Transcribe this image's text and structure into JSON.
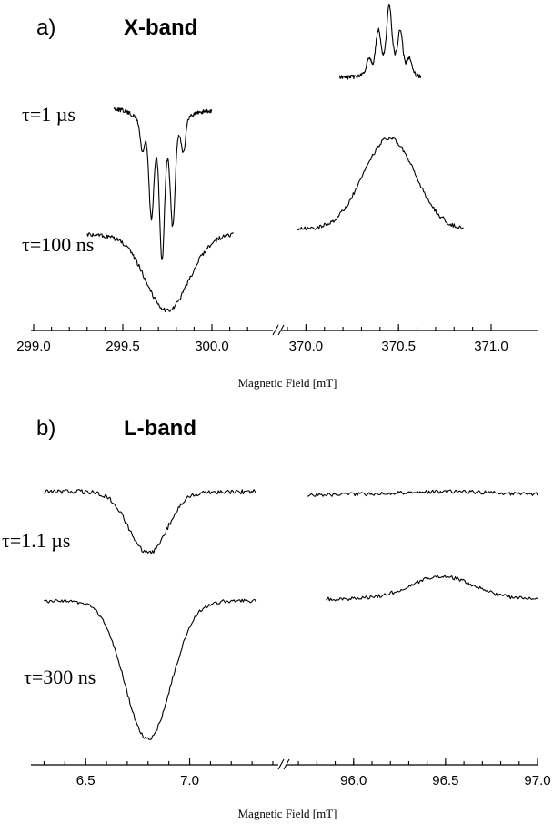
{
  "chart_data": [
    {
      "panel": "a)",
      "title": "X-band",
      "type": "line",
      "xlabel": "Magnetic Field [mT]",
      "ylabel": "",
      "axis_break": true,
      "segments": [
        {
          "xlim": [
            299.0,
            300.25
          ],
          "ticks": [
            "299.0",
            "299.5",
            "300.0"
          ]
        },
        {
          "xlim": [
            369.9,
            371.0
          ],
          "ticks": [
            "370.0",
            "370.5",
            "371.0"
          ]
        }
      ],
      "series": [
        {
          "label": "τ=1 µs",
          "parts": [
            {
              "segment": 0,
              "x_range": [
                299.45,
                300.0
              ],
              "shape": "triplet absorption",
              "center": 299.72,
              "lines": [
                299.66,
                299.72,
                299.78
              ],
              "depth": 1.0
            },
            {
              "segment": 1,
              "x_range": [
                370.18,
                370.62
              ],
              "shape": "triplet emission",
              "center": 370.45,
              "lines": [
                370.39,
                370.45,
                370.51
              ],
              "height": 0.75
            }
          ]
        },
        {
          "label": "τ=100 ns",
          "parts": [
            {
              "segment": 0,
              "x_range": [
                299.3,
                300.12
              ],
              "shape": "broad absorption",
              "center": 299.75,
              "depth": 0.7
            },
            {
              "segment": 1,
              "x_range": [
                369.95,
                370.85
              ],
              "shape": "broad emission",
              "center": 370.45,
              "height": 0.6
            }
          ]
        }
      ]
    },
    {
      "panel": "b)",
      "title": "L-band",
      "type": "line",
      "xlabel": "Magnetic Field [mT]",
      "ylabel": "",
      "axis_break": true,
      "segments": [
        {
          "xlim": [
            6.25,
            7.4
          ],
          "ticks": [
            "6.5",
            "7.0"
          ]
        },
        {
          "xlim": [
            95.65,
            97.0
          ],
          "ticks": [
            "96.0",
            "96.5",
            "97.0"
          ]
        }
      ],
      "series": [
        {
          "label": "τ=1.1 µs",
          "parts": [
            {
              "segment": 0,
              "x_range": [
                6.3,
                7.32
              ],
              "shape": "absorption",
              "center": 6.8,
              "depth": 0.7
            },
            {
              "segment": 1,
              "x_range": [
                95.75,
                97.0
              ],
              "shape": "flat",
              "center": 96.5,
              "height": 0.05
            }
          ]
        },
        {
          "label": "τ=300 ns",
          "parts": [
            {
              "segment": 0,
              "x_range": [
                6.3,
                7.32
              ],
              "shape": "absorption",
              "center": 6.8,
              "depth": 1.0
            },
            {
              "segment": 1,
              "x_range": [
                95.85,
                97.0
              ],
              "shape": "emission",
              "center": 96.48,
              "height": 0.25
            }
          ]
        }
      ]
    }
  ]
}
